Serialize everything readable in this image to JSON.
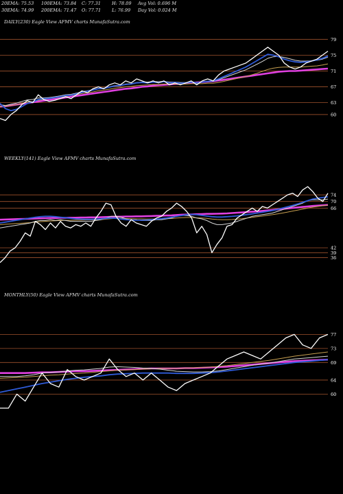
{
  "header": {
    "row1": [
      "20EMA: 75.53",
      "100EMA: 73.84",
      "C: 77.31",
      "H: 78.09",
      "Avg Vol: 0.696  M"
    ],
    "row2": [
      "30EMA: 74.99",
      "200EMA: 71.47",
      "O: 77.71",
      "L: 76.99",
      "Day Vol: 0.024  M"
    ]
  },
  "panels": [
    {
      "label": "DAILY(230) Eagle   View  AFMV charts MunafaSutra.com"
    },
    {
      "label": "WEEKLY(141) Eagle   View  AFMV charts MunafaSutra.com"
    },
    {
      "label": "MONTHLY(50) Eagle   View  AFMV charts MunafaSutra.com"
    }
  ],
  "colors": {
    "background": "#000000",
    "price": "#ffffff",
    "ema_fast": "#d8d8d8",
    "ema_mid": "#c8a050",
    "ema_slow": "#2f5bd8",
    "ema_long": "#e040e0",
    "hline": "#a0522d"
  },
  "chart_data": [
    {
      "type": "line",
      "title": "DAILY(230) Eagle   View  AFMV charts MunafaSutra.com",
      "ylim": [
        56,
        82
      ],
      "yticks": [
        60,
        63,
        67,
        71,
        75,
        79
      ],
      "hlines": [
        60,
        63,
        67,
        71,
        75,
        79
      ],
      "series": [
        {
          "role": "price",
          "values": [
            59,
            58.5,
            60,
            61,
            62.5,
            63.5,
            63,
            65,
            63.8,
            63.3,
            63.6,
            64,
            64.5,
            64,
            65,
            66,
            65.5,
            66.5,
            67,
            66.5,
            67.5,
            68,
            67.5,
            68.5,
            68,
            69,
            68.5,
            68,
            68.5,
            68,
            68.5,
            67.5,
            68,
            67.5,
            68,
            68.5,
            67.5,
            68.5,
            69,
            68.5,
            70,
            71,
            71.5,
            72,
            72.5,
            73,
            74,
            75,
            76,
            77,
            76,
            75,
            73,
            72,
            71.5,
            72,
            73,
            73.5,
            74,
            75,
            76
          ]
        },
        {
          "role": "ema_fast",
          "values": [
            62.5,
            62.3,
            62.6,
            62.9,
            63.3,
            63.7,
            63.8,
            64.2,
            64.2,
            64.3,
            64.5,
            64.7,
            65.0,
            65.1,
            65.4,
            65.8,
            66.0,
            66.3,
            66.6,
            66.7,
            67.0,
            67.3,
            67.4,
            67.7,
            67.8,
            68.1,
            68.2,
            68.2,
            68.3,
            68.3,
            68.4,
            68.2,
            68.2,
            68.1,
            68.1,
            68.2,
            68.1,
            68.2,
            68.3,
            68.4,
            68.8,
            69.3,
            69.8,
            70.3,
            70.8,
            71.3,
            72.0,
            72.7,
            73.4,
            74.2,
            74.6,
            74.7,
            74.4,
            74.1,
            73.7,
            73.5,
            73.5,
            73.6,
            73.7,
            74.0,
            74.5
          ]
        },
        {
          "role": "ema_mid",
          "values": [
            62.0,
            62.1,
            62.3,
            62.5,
            62.8,
            63.1,
            63.3,
            63.6,
            63.8,
            64.0,
            64.2,
            64.4,
            64.6,
            64.8,
            65.0,
            65.3,
            65.5,
            65.7,
            66.0,
            66.2,
            66.4,
            66.6,
            66.8,
            67.0,
            67.1,
            67.3,
            67.4,
            67.5,
            67.6,
            67.6,
            67.7,
            67.7,
            67.7,
            67.7,
            67.7,
            67.8,
            67.8,
            67.8,
            67.9,
            67.9,
            68.1,
            68.4,
            68.7,
            69.0,
            69.3,
            69.6,
            70.0,
            70.4,
            70.9,
            71.4,
            71.7,
            71.9,
            72.0,
            72.0,
            72.0,
            72.0,
            72.1,
            72.2,
            72.3,
            72.5,
            72.8
          ]
        },
        {
          "role": "ema_slow",
          "values": [
            62.8,
            61.5,
            61.0,
            61.3,
            62.0,
            62.8,
            63.2,
            63.8,
            64.0,
            64.1,
            64.3,
            64.5,
            64.8,
            64.9,
            65.2,
            65.6,
            65.9,
            66.2,
            66.5,
            66.6,
            66.9,
            67.2,
            67.3,
            67.6,
            67.7,
            68.0,
            68.1,
            68.0,
            68.2,
            68.1,
            68.3,
            68.0,
            68.1,
            67.9,
            68.0,
            68.2,
            68.0,
            68.2,
            68.4,
            68.5,
            69.0,
            69.6,
            70.2,
            70.8,
            71.4,
            72.0,
            72.8,
            73.6,
            74.4,
            75.2,
            75.0,
            74.6,
            74.0,
            73.6,
            73.3,
            73.2,
            73.3,
            73.5,
            73.8,
            74.2,
            74.8
          ]
        },
        {
          "role": "ema_long",
          "values": [
            62.0,
            62.1,
            62.3,
            62.5,
            62.7,
            62.9,
            63.1,
            63.3,
            63.5,
            63.7,
            63.9,
            64.1,
            64.3,
            64.5,
            64.7,
            64.9,
            65.1,
            65.3,
            65.5,
            65.7,
            65.9,
            66.1,
            66.3,
            66.5,
            66.6,
            66.8,
            67.0,
            67.1,
            67.3,
            67.4,
            67.5,
            67.6,
            67.7,
            67.8,
            67.9,
            68.0,
            68.1,
            68.2,
            68.3,
            68.4,
            68.6,
            68.8,
            69.0,
            69.2,
            69.4,
            69.6,
            69.8,
            70.0,
            70.2,
            70.4,
            70.6,
            70.8,
            70.9,
            71.0,
            71.0,
            71.1,
            71.2,
            71.3,
            71.4,
            71.5,
            71.6
          ]
        }
      ]
    },
    {
      "type": "line",
      "title": "WEEKLY(141) Eagle   View  AFMV charts MunafaSutra.com",
      "ylim": [
        30,
        79
      ],
      "yticks": [
        36,
        39,
        42,
        66,
        70,
        74
      ],
      "hlines": [
        36,
        39,
        42,
        66,
        70,
        74
      ],
      "series": [
        {
          "role": "price",
          "values": [
            33,
            36,
            40,
            42,
            46,
            51,
            49,
            58,
            56,
            53,
            57,
            54,
            58,
            55,
            54,
            56,
            55,
            57,
            55,
            60,
            64,
            69,
            68,
            61,
            57,
            55,
            59,
            57,
            56,
            55,
            58,
            60,
            61,
            64,
            66,
            69,
            67,
            64,
            60,
            51,
            55,
            50,
            39,
            44,
            48,
            55,
            56,
            60,
            62,
            64,
            66,
            64,
            67,
            66,
            68,
            70,
            72,
            74,
            75,
            73,
            77,
            79,
            76,
            72,
            70,
            75
          ]
        },
        {
          "role": "ema_fast",
          "values": [
            54,
            54.5,
            55,
            55.5,
            56,
            56.5,
            57,
            58,
            58.5,
            58.5,
            59,
            58.5,
            59,
            58.5,
            58,
            58,
            58,
            58,
            58,
            58.5,
            59,
            60,
            61,
            61,
            60.5,
            59.5,
            59,
            59,
            58.5,
            58.5,
            58.5,
            59,
            59,
            59.5,
            60,
            61,
            61.5,
            61.5,
            61,
            60,
            59.5,
            58.5,
            57,
            56,
            56,
            56.5,
            57,
            58,
            59,
            60,
            61,
            61.5,
            62,
            62.5,
            63,
            64,
            65,
            66,
            67,
            68,
            69,
            70.5,
            71,
            71,
            71,
            71.5
          ]
        },
        {
          "role": "ema_mid",
          "values": [
            56,
            56.2,
            56.4,
            56.6,
            56.8,
            57,
            57.2,
            57.5,
            57.8,
            58,
            58.2,
            58.3,
            58.5,
            58.6,
            58.6,
            58.7,
            58.7,
            58.8,
            58.8,
            58.9,
            59,
            59.3,
            59.6,
            59.8,
            59.8,
            59.7,
            59.6,
            59.5,
            59.5,
            59.4,
            59.4,
            59.5,
            59.5,
            59.6,
            59.7,
            60,
            60.2,
            60.3,
            60.3,
            60.1,
            60,
            59.8,
            59.4,
            59.1,
            59,
            59,
            59.1,
            59.3,
            59.6,
            60,
            60.4,
            60.8,
            61.2,
            61.6,
            62,
            62.5,
            63,
            63.6,
            64.2,
            64.8,
            65.4,
            66,
            66.6,
            67,
            67.4,
            67.8
          ]
        },
        {
          "role": "ema_slow",
          "values": [
            57,
            57.5,
            58,
            58.5,
            59,
            59.5,
            60,
            60.5,
            60.8,
            61,
            61,
            60.8,
            60.5,
            60.2,
            59.8,
            59.5,
            59.3,
            59.2,
            59.2,
            59.3,
            59.5,
            59.8,
            60,
            59.8,
            59.4,
            59,
            58.8,
            58.7,
            58.7,
            58.8,
            59,
            59.3,
            59.6,
            60,
            60.5,
            61,
            61.5,
            62,
            62.2,
            62,
            61.6,
            61.2,
            60.8,
            60.6,
            60.6,
            60.8,
            61,
            61.3,
            61.7,
            62.1,
            62.5,
            63,
            63.5,
            64,
            64.5,
            65.2,
            66,
            66.8,
            67.6,
            68.5,
            69.5,
            70.5,
            71.5,
            72,
            72.4,
            72.8
          ]
        },
        {
          "role": "ema_long",
          "values": [
            59,
            59.1,
            59.2,
            59.3,
            59.4,
            59.5,
            59.6,
            59.7,
            59.8,
            59.9,
            60,
            60,
            60.1,
            60.1,
            60.2,
            60.2,
            60.3,
            60.3,
            60.4,
            60.4,
            60.5,
            60.6,
            60.7,
            60.8,
            60.8,
            60.9,
            60.9,
            61,
            61,
            61.1,
            61.2,
            61.3,
            61.4,
            61.5,
            61.6,
            61.8,
            62,
            62.1,
            62.2,
            62.3,
            62.4,
            62.5,
            62.5,
            62.6,
            62.7,
            62.8,
            63,
            63.2,
            63.4,
            63.6,
            63.8,
            64,
            64.3,
            64.6,
            64.9,
            65.2,
            65.5,
            65.8,
            66.1,
            66.4,
            66.7,
            67,
            67.3,
            67.5,
            67.7,
            67.9
          ]
        }
      ]
    },
    {
      "type": "line",
      "title": "MONTHLY(50) Eagle   View  AFMV charts MunafaSutra.com",
      "ylim": [
        55,
        80
      ],
      "yticks": [
        60,
        64,
        69,
        73,
        77
      ],
      "hlines": [
        60,
        64,
        69,
        73,
        77
      ],
      "series": [
        {
          "role": "price",
          "values": [
            56,
            56,
            60,
            58,
            62,
            66,
            63,
            62,
            67,
            65,
            64,
            65,
            66,
            70,
            67,
            65,
            66,
            64,
            66,
            64,
            62,
            61,
            63,
            64,
            65,
            66,
            68,
            70,
            71,
            72,
            71,
            70,
            72,
            74,
            76,
            77,
            74,
            73,
            76,
            77
          ]
        },
        {
          "role": "ema_fast",
          "values": [
            65,
            65,
            65,
            65.2,
            65.5,
            66,
            66.2,
            66.3,
            66.6,
            66.8,
            66.9,
            67.1,
            67.3,
            67.7,
            67.8,
            67.7,
            67.6,
            67.4,
            67.3,
            67.1,
            66.8,
            66.5,
            66.4,
            66.3,
            66.3,
            66.4,
            66.6,
            67,
            67.4,
            67.8,
            68.2,
            68.5,
            68.8,
            69.2,
            69.6,
            70,
            70.2,
            70.4,
            70.6,
            70.8
          ]
        },
        {
          "role": "ema_mid",
          "values": [
            64.5,
            64.6,
            64.7,
            64.8,
            65,
            65.2,
            65.4,
            65.5,
            65.7,
            65.9,
            66,
            66.2,
            66.4,
            66.6,
            66.8,
            66.9,
            67,
            67.1,
            67.2,
            67.3,
            67.3,
            67.3,
            67.4,
            67.5,
            67.6,
            67.7,
            67.9,
            68.1,
            68.4,
            68.7,
            69,
            69.3,
            69.6,
            70,
            70.4,
            70.8,
            71.1,
            71.4,
            71.7,
            72
          ]
        },
        {
          "role": "ema_slow",
          "values": [
            60.5,
            61,
            61.5,
            62,
            62.5,
            63,
            63.4,
            63.8,
            64.2,
            64.5,
            64.8,
            65,
            65.2,
            65.5,
            65.7,
            65.8,
            65.9,
            66,
            66,
            66,
            66,
            65.9,
            65.9,
            65.9,
            66,
            66.1,
            66.3,
            66.6,
            66.9,
            67.2,
            67.5,
            67.8,
            68.1,
            68.4,
            68.7,
            69,
            69.2,
            69.4,
            69.6,
            69.8
          ]
        },
        {
          "role": "ema_long",
          "values": [
            66,
            66,
            66,
            66,
            66.1,
            66.2,
            66.2,
            66.3,
            66.4,
            66.5,
            66.5,
            66.6,
            66.7,
            66.8,
            66.9,
            67,
            67.1,
            67.2,
            67.3,
            67.3,
            67.3,
            67.3,
            67.4,
            67.4,
            67.5,
            67.6,
            67.7,
            67.8,
            68,
            68.2,
            68.4,
            68.6,
            68.8,
            69,
            69.2,
            69.4,
            69.5,
            69.6,
            69.7,
            69.8
          ]
        }
      ]
    }
  ]
}
